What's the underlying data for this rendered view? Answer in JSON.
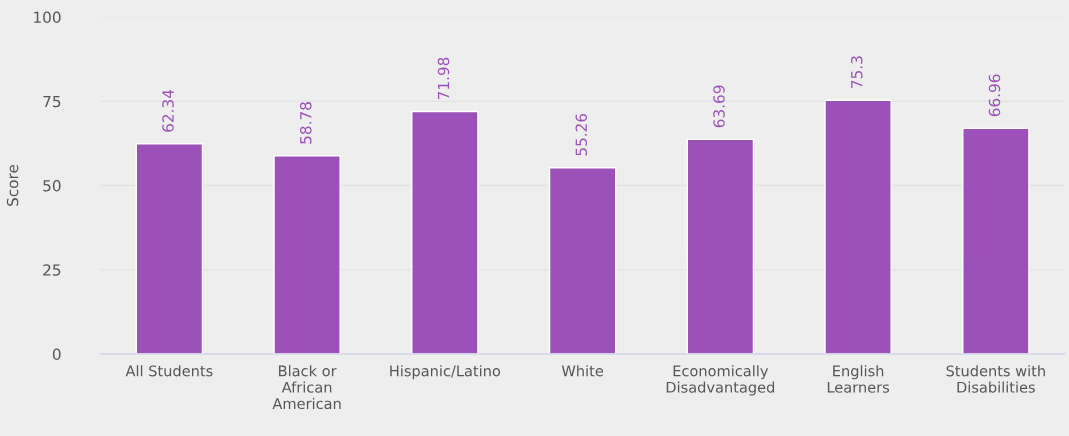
{
  "chart_data": {
    "type": "bar",
    "ylabel": "Score",
    "categories": [
      "All Students",
      "Black or\nAfrican\nAmerican",
      "Hispanic/Latino",
      "White",
      "Economically\nDisadvantaged",
      "English\nLearners",
      "Students with\nDisabilities"
    ],
    "values": [
      62.34,
      58.78,
      71.98,
      55.26,
      63.69,
      75.3,
      66.96
    ],
    "color": "#9b51b7",
    "ylim": [
      0,
      100
    ],
    "yticks": [
      0,
      25,
      50,
      75,
      100
    ],
    "grid": "y",
    "data_labels": true
  }
}
